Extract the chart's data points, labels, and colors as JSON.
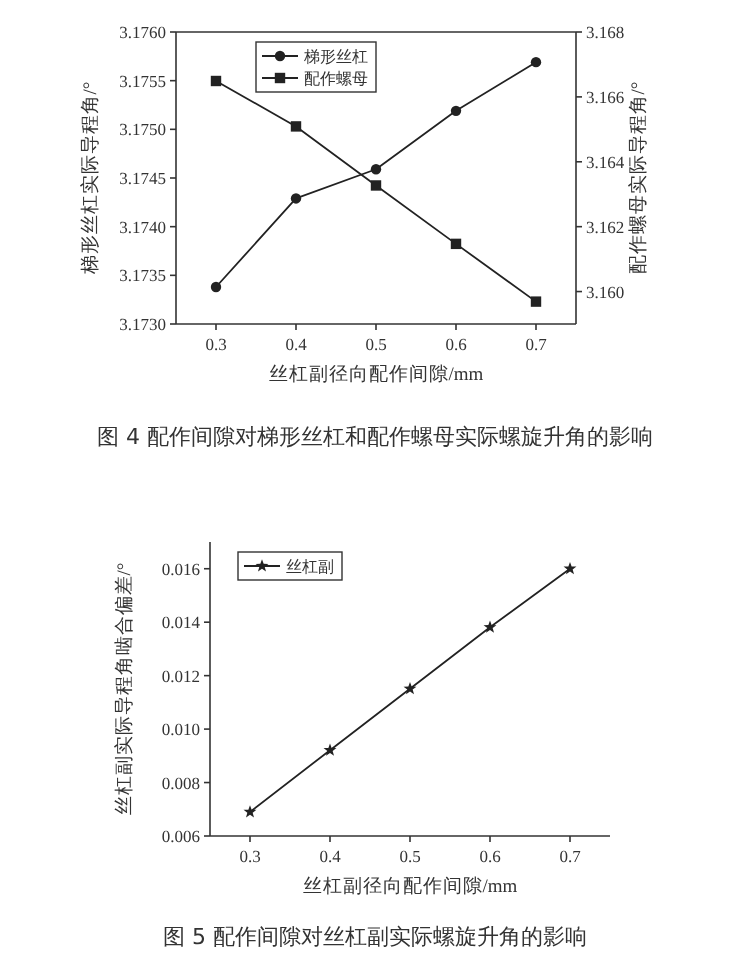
{
  "chart_data": [
    {
      "type": "line",
      "title": "图 4 配作间隙对梯形丝杠和配作螺母实际螺旋升角的影响",
      "xlabel": "丝杠副径向配作间隙/mm",
      "ylabel": "梯形丝杠实际导程角/°",
      "y2label": "配作螺母实际导程角/°",
      "x": [
        0.3,
        0.4,
        0.5,
        0.6,
        0.7
      ],
      "series": [
        {
          "name": "梯形丝杠",
          "color": "#222222",
          "marker": "circle",
          "values": [
            3.17338,
            3.17429,
            3.17459,
            3.17519,
            3.17569
          ]
        },
        {
          "name": "配作螺母",
          "color": "#222222",
          "marker": "square",
          "axis": "y2",
          "values": [
            3.16649,
            3.16509,
            3.16327,
            3.16147,
            3.15969
          ]
        }
      ],
      "xlim": [
        0.25,
        0.75
      ],
      "xticks": [
        0.3,
        0.4,
        0.5,
        0.6,
        0.7
      ],
      "ylim": [
        3.173,
        3.176
      ],
      "yticks": [
        {
          "value": 3.173,
          "label": "3.1730"
        },
        {
          "value": 3.1735,
          "label": "3.1735"
        },
        {
          "value": 3.174,
          "label": "3.1740"
        },
        {
          "value": 3.1745,
          "label": "3.1745"
        },
        {
          "value": 3.175,
          "label": "3.1750"
        },
        {
          "value": 3.1755,
          "label": "3.1755"
        },
        {
          "value": 3.176,
          "label": "3.1760"
        }
      ],
      "y2lim": [
        3.159,
        3.168
      ],
      "y2ticks": [
        {
          "value": 3.16,
          "label": "3.160"
        },
        3.162,
        3.164,
        3.166,
        3.168
      ],
      "legend": "top left",
      "grid": false
    },
    {
      "type": "line",
      "title": "图 5 配作间隙对丝杠副实际螺旋升角的影响",
      "xlabel": "丝杠副径向配作间隙/mm",
      "ylabel": "丝杠副实际导程角啮合偏差/°",
      "x": [
        0.3,
        0.4,
        0.5,
        0.6,
        0.7
      ],
      "series": [
        {
          "name": "丝杠副",
          "color": "#222222",
          "values": [
            0.0069,
            0.00921,
            0.01151,
            0.01381,
            0.016
          ]
        }
      ],
      "marker": "star",
      "xlim": [
        0.25,
        0.75
      ],
      "xticks": [
        0.3,
        0.4,
        0.5,
        0.6,
        0.7
      ],
      "ylim": [
        0.006,
        0.017
      ],
      "yticks": [
        {
          "value": 0.006,
          "label": "0.006"
        },
        {
          "value": 0.008,
          "label": "0.008"
        },
        {
          "value": 0.01,
          "label": "0.010"
        },
        {
          "value": 0.012,
          "label": "0.012"
        },
        {
          "value": 0.014,
          "label": "0.014"
        },
        {
          "value": 0.016,
          "label": "0.016"
        }
      ],
      "legend": "top left",
      "grid": false
    }
  ]
}
